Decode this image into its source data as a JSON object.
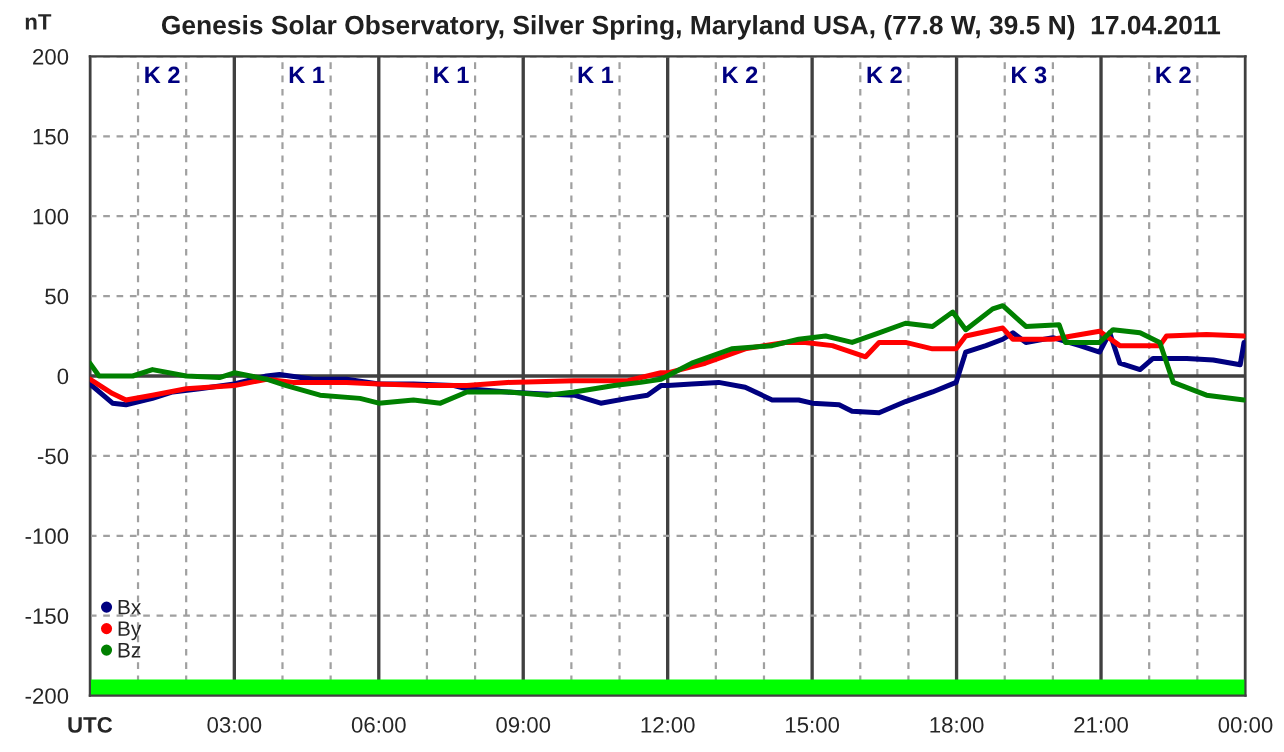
{
  "chart_data": {
    "type": "line",
    "title": "Genesis Solar Observatory, Silver Spring, Maryland USA, (77.8 W, 39.5 N)  17.04.2011",
    "ylabel": "nT",
    "xlim": [
      0,
      24
    ],
    "ylim": [
      -200,
      200
    ],
    "xticks": [
      {
        "value": 0,
        "label": "UTC"
      },
      {
        "value": 1,
        "label": null
      },
      {
        "value": 2,
        "label": null
      },
      {
        "value": 3,
        "label": "03:00"
      },
      {
        "value": 4,
        "label": null
      },
      {
        "value": 5,
        "label": null
      },
      {
        "value": 6,
        "label": "06:00"
      },
      {
        "value": 7,
        "label": null
      },
      {
        "value": 8,
        "label": null
      },
      {
        "value": 9,
        "label": "09:00"
      },
      {
        "value": 10,
        "label": null
      },
      {
        "value": 11,
        "label": null
      },
      {
        "value": 12,
        "label": "12:00"
      },
      {
        "value": 13,
        "label": null
      },
      {
        "value": 14,
        "label": null
      },
      {
        "value": 15,
        "label": "15:00"
      },
      {
        "value": 16,
        "label": null
      },
      {
        "value": 17,
        "label": null
      },
      {
        "value": 18,
        "label": "18:00"
      },
      {
        "value": 19,
        "label": null
      },
      {
        "value": 20,
        "label": null
      },
      {
        "value": 21,
        "label": "21:00"
      },
      {
        "value": 22,
        "label": null
      },
      {
        "value": 23,
        "label": null
      },
      {
        "value": 24,
        "label": "00:00"
      }
    ],
    "yticks": [
      -200,
      -150,
      -100,
      -50,
      0,
      50,
      100,
      150,
      200
    ],
    "grid": true,
    "legend": "bottom left",
    "series": [
      {
        "name": "Bx",
        "color": "#000080",
        "x": [
          0,
          0.47,
          0.75,
          1.3,
          1.72,
          2.28,
          3,
          3.67,
          3.94,
          4.64,
          5.33,
          6,
          6.72,
          7.56,
          7.83,
          8.67,
          9.22,
          10.06,
          10.61,
          11.17,
          11.58,
          11.86,
          12,
          12.5,
          13.06,
          13.61,
          14.17,
          14.72,
          15,
          15.56,
          15.83,
          16.39,
          16.94,
          17.5,
          17.99,
          18.19,
          18.61,
          18.96,
          19.17,
          19.44,
          20,
          20.56,
          20.97,
          21.18,
          21.39,
          21.81,
          22.08,
          22.78,
          23.33,
          23.89,
          23.97
        ],
        "values": [
          -5,
          -17,
          -18,
          -14,
          -10,
          -8,
          -5,
          0,
          1,
          -2,
          -2,
          -5,
          -5,
          -6,
          -8,
          -10,
          -11,
          -12,
          -17,
          -14,
          -12,
          -6,
          -6,
          -5,
          -4,
          -7,
          -15,
          -15,
          -17,
          -18,
          -22,
          -23,
          -16,
          -10,
          -4,
          15,
          19,
          23,
          27,
          21,
          24,
          19,
          15,
          27,
          8,
          4,
          11,
          11,
          10,
          7,
          21
        ]
      },
      {
        "name": "By",
        "color": "#ff0000",
        "x": [
          0,
          0.47,
          0.75,
          1.3,
          2,
          3,
          3.67,
          4.22,
          5.33,
          6,
          7,
          7.83,
          8.67,
          10.06,
          11.17,
          11.86,
          12,
          12.78,
          13.61,
          14.44,
          14.86,
          15.42,
          16.11,
          16.39,
          16.94,
          17.5,
          17.99,
          18.19,
          18.96,
          19.17,
          20,
          20.97,
          21.39,
          22.22,
          22.36,
          23.19,
          23.97
        ],
        "values": [
          -2,
          -11,
          -15,
          -12,
          -8,
          -6,
          -2,
          -4,
          -4,
          -5,
          -6,
          -6,
          -4,
          -3,
          -3,
          2,
          2,
          8,
          17,
          21,
          21,
          19,
          12,
          21,
          21,
          17,
          17,
          25,
          30,
          23,
          23,
          28,
          19,
          19,
          25,
          26,
          25
        ]
      },
      {
        "name": "Bz",
        "color": "#008000",
        "x": [
          0,
          0.19,
          0.89,
          1.3,
          2,
          2.69,
          3,
          3.67,
          4.08,
          4.78,
          5.61,
          6,
          6.72,
          7.28,
          7.83,
          8.67,
          9.5,
          10.06,
          10.89,
          11.44,
          11.86,
          12.5,
          13.33,
          14.17,
          14.72,
          15.28,
          15.83,
          16.39,
          16.94,
          17.5,
          17.92,
          18.19,
          18.75,
          18.96,
          19.44,
          20.13,
          20.26,
          20.97,
          21.25,
          21.81,
          22.22,
          22.5,
          23.19,
          23.97
        ],
        "values": [
          8,
          0,
          0,
          4,
          0,
          -1,
          2,
          -2,
          -6,
          -12,
          -14,
          -17,
          -15,
          -17,
          -10,
          -10,
          -12,
          -10,
          -6,
          -4,
          -2,
          8,
          17,
          19,
          23,
          25,
          21,
          27,
          33,
          31,
          40,
          29,
          42,
          44,
          31,
          32,
          21,
          21,
          29,
          27,
          21,
          -4,
          -12,
          -15
        ]
      }
    ],
    "bands": [
      {
        "axis": "y",
        "from": -200,
        "to": -190,
        "color": "#00ff00"
      }
    ],
    "annotations": [
      "K 2",
      "K 1",
      "K 1",
      "K 1",
      "K 2",
      "K 2",
      "K 3",
      "K 2"
    ]
  }
}
